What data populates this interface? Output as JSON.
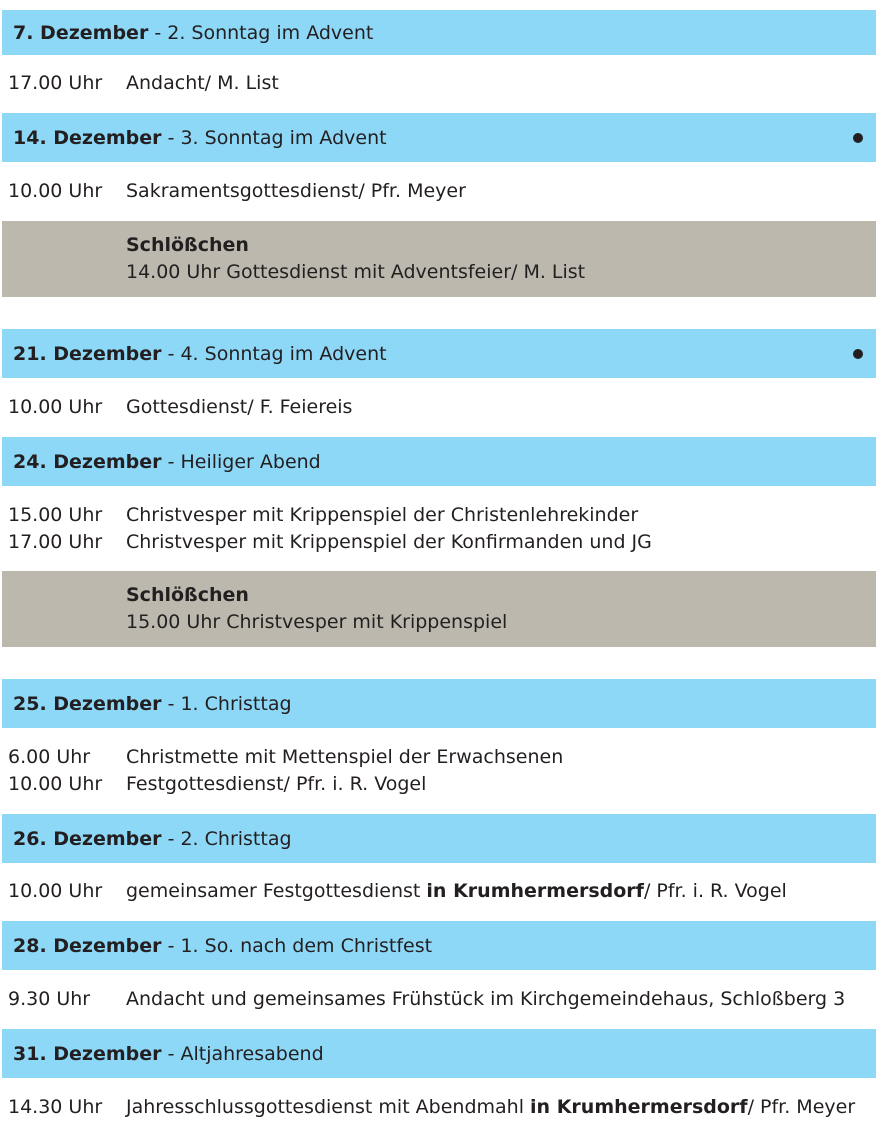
{
  "colors": {
    "header": "#8dd7f7",
    "note": "#bcb8ae",
    "text": "#231f20"
  },
  "days": [
    {
      "date": "7. Dezember",
      "title": "2. Sonntag im Advent",
      "dot": false,
      "events": [
        {
          "time": "17.00 Uhr",
          "desc": [
            {
              "text": "Andacht/ M. List",
              "bold": false
            }
          ]
        }
      ]
    },
    {
      "date": "14. Dezember",
      "title": "3. Sonntag im Advent",
      "dot": true,
      "events": [
        {
          "time": "10.00 Uhr",
          "desc": [
            {
              "text": "Sakramentsgottesdienst/ Pfr. Meyer",
              "bold": false
            }
          ]
        }
      ],
      "note": {
        "location": "Schlößchen",
        "text": "14.00 Uhr Gottesdienst mit Adventsfeier/ M. List"
      }
    },
    {
      "date": "21. Dezember",
      "title": "4. Sonntag im Advent",
      "dot": true,
      "events": [
        {
          "time": "10.00 Uhr",
          "desc": [
            {
              "text": "Gottesdienst/ F. Feiereis",
              "bold": false
            }
          ]
        }
      ]
    },
    {
      "date": "24. Dezember",
      "title": "Heiliger Abend",
      "dot": false,
      "events": [
        {
          "time": "15.00 Uhr",
          "desc": [
            {
              "text": "Christvesper mit Krippenspiel der Christenlehrekinder",
              "bold": false
            }
          ]
        },
        {
          "time": "17.00 Uhr",
          "desc": [
            {
              "text": "Christvesper mit Krippenspiel der Konfirmanden und JG",
              "bold": false
            }
          ]
        }
      ],
      "note": {
        "location": "Schlößchen",
        "text": "15.00 Uhr Christvesper mit Krippenspiel"
      }
    },
    {
      "date": "25. Dezember",
      "title": "1. Christtag",
      "dot": false,
      "events": [
        {
          "time": "6.00 Uhr",
          "desc": [
            {
              "text": "Christmette mit Mettenspiel der Erwachsenen",
              "bold": false
            }
          ]
        },
        {
          "time": "10.00 Uhr",
          "desc": [
            {
              "text": "Festgottesdienst/ Pfr. i. R. Vogel",
              "bold": false
            }
          ]
        }
      ]
    },
    {
      "date": "26. Dezember",
      "title": "2. Christtag",
      "dot": false,
      "events": [
        {
          "time": "10.00 Uhr",
          "desc": [
            {
              "text": "gemeinsamer Festgottesdienst ",
              "bold": false
            },
            {
              "text": "in Krumhermersdorf",
              "bold": true
            },
            {
              "text": "/ Pfr. i. R. Vogel",
              "bold": false
            }
          ]
        }
      ]
    },
    {
      "date": "28. Dezember",
      "title": "1. So. nach dem Christfest",
      "dot": false,
      "events": [
        {
          "time": "9.30 Uhr",
          "desc": [
            {
              "text": "Andacht und gemeinsames Frühstück im Kirchgemeindehaus, Schloßberg 3",
              "bold": false
            }
          ]
        }
      ]
    },
    {
      "date": "31. Dezember",
      "title": "Altjahresabend",
      "dot": false,
      "events": [
        {
          "time": "14.30 Uhr",
          "desc": [
            {
              "text": "Jahresschlussgottesdienst mit Abendmahl ",
              "bold": false
            },
            {
              "text": "in Krumhermersdorf",
              "bold": true
            },
            {
              "text": "/ Pfr. Meyer",
              "bold": false
            }
          ]
        }
      ]
    }
  ]
}
